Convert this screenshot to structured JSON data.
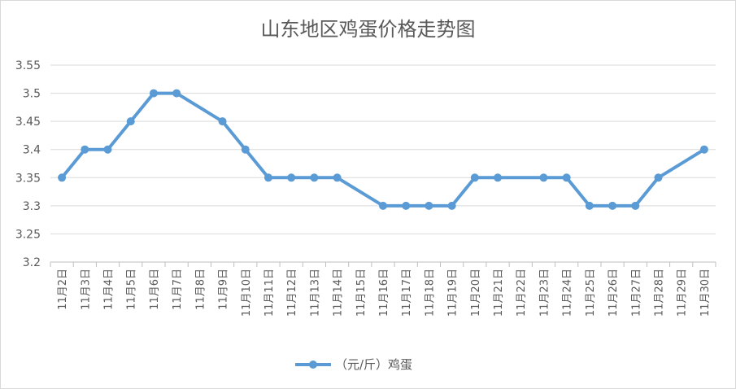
{
  "chart_data": {
    "type": "line",
    "title": "山东地区鸡蛋价格走势图",
    "xlabel": "",
    "ylabel": "",
    "categories": [
      "11月2日",
      "11月3日",
      "11月4日",
      "11月5日",
      "11月6日",
      "11月7日",
      "11月8日",
      "11月9日",
      "11月10日",
      "11月11日",
      "11月12日",
      "11月13日",
      "11月14日",
      "11月15日",
      "11月16日",
      "11月17日",
      "11月18日",
      "11月19日",
      "11月20日",
      "11月21日",
      "11月22日",
      "11月23日",
      "11月24日",
      "11月25日",
      "11月26日",
      "11月27日",
      "11月28日",
      "11月29日",
      "11月30日"
    ],
    "ylim": [
      3.2,
      3.55
    ],
    "yticks": [
      "3.2",
      "3.25",
      "3.3",
      "3.35",
      "3.4",
      "3.45",
      "3.5",
      "3.55"
    ],
    "grid": true,
    "legend_position": "bottom",
    "series": [
      {
        "name": "（元/斤）鸡蛋",
        "color": "#5b9bd5",
        "values": [
          3.35,
          3.4,
          3.4,
          3.45,
          3.5,
          3.5,
          null,
          3.45,
          3.4,
          3.35,
          3.35,
          3.35,
          3.35,
          null,
          3.3,
          3.3,
          3.3,
          3.3,
          3.35,
          3.35,
          null,
          3.35,
          3.35,
          3.3,
          3.3,
          3.3,
          3.35,
          null,
          3.4
        ]
      }
    ]
  }
}
